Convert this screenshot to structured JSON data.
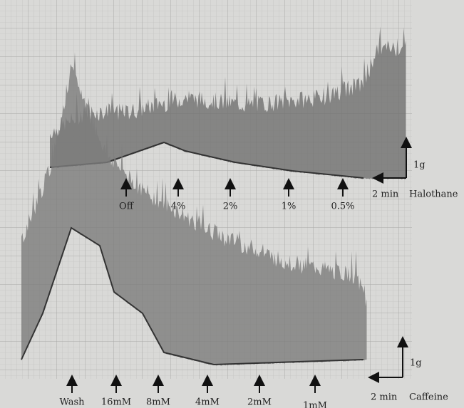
{
  "traces": [
    {
      "name": "Halothane",
      "markers": [
        "Off",
        "4%",
        "2%",
        "1%",
        "0.5%"
      ],
      "scale_force": "1g",
      "scale_time": "2 min"
    },
    {
      "name": "Caffeine",
      "markers": [
        "Wash",
        "16mM",
        "8mM",
        "4mM",
        "2mM",
        "1mM"
      ],
      "scale_force": "1g",
      "scale_time": "2 min"
    }
  ]
}
